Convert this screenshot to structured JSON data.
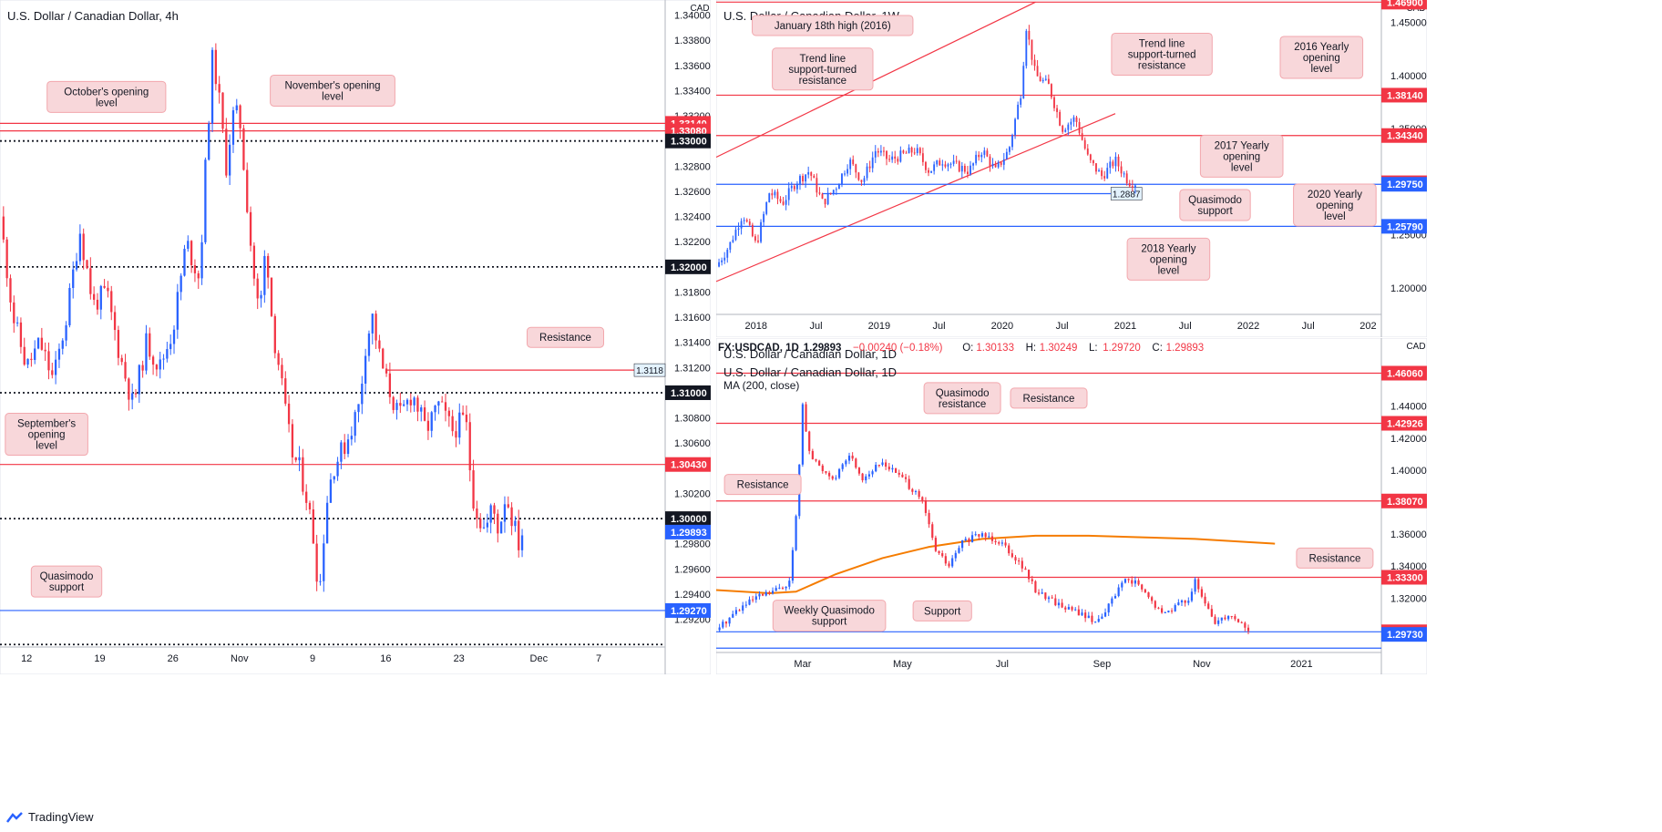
{
  "brand": "TradingView",
  "chart_data": [
    {
      "id": "h4",
      "type": "candlestick",
      "title": "U.S. Dollar / Canadian Dollar, 4h",
      "currency": "CAD",
      "ylim": [
        1.2898,
        1.3412
      ],
      "xlim": [
        0,
        100
      ],
      "x_ticks": [
        {
          "x": 4,
          "label": "12"
        },
        {
          "x": 15,
          "label": "19"
        },
        {
          "x": 26,
          "label": "26"
        },
        {
          "x": 36,
          "label": "Nov"
        },
        {
          "x": 47,
          "label": "9"
        },
        {
          "x": 58,
          "label": "16"
        },
        {
          "x": 69,
          "label": "23"
        },
        {
          "x": 81,
          "label": "Dec"
        },
        {
          "x": 90,
          "label": "7"
        }
      ],
      "y_ticks": [
        1.292,
        1.294,
        1.296,
        1.298,
        1.302,
        1.306,
        1.308,
        1.312,
        1.314,
        1.316,
        1.318,
        1.322,
        1.324,
        1.326,
        1.328,
        1.332,
        1.334,
        1.336,
        1.338,
        1.34
      ],
      "levels": [
        {
          "value": 1.3314,
          "label": "1.33140",
          "style": "solid",
          "color": "#f23645",
          "tag": "red"
        },
        {
          "value": 1.3308,
          "label": "1.33080",
          "style": "solid",
          "color": "#f23645",
          "tag": "red"
        },
        {
          "value": 1.33,
          "label": "1.33000",
          "style": "dotted",
          "color": "#131722",
          "tag": "black"
        },
        {
          "value": 1.32,
          "label": "1.32000",
          "style": "dotted",
          "color": "#131722",
          "tag": "black"
        },
        {
          "value": 1.3118,
          "label": "1.3118",
          "style": "solid",
          "color": "#f23645",
          "tag": "small",
          "x_start": 58
        },
        {
          "value": 1.31,
          "label": "1.31000",
          "style": "dotted",
          "color": "#131722",
          "tag": "black"
        },
        {
          "value": 1.3043,
          "label": "1.30430",
          "style": "solid",
          "color": "#f23645",
          "tag": "red"
        },
        {
          "value": 1.3,
          "label": "1.30000",
          "style": "dotted",
          "color": "#131722",
          "tag": "black"
        },
        {
          "value": 1.29893,
          "label": "1.29893",
          "style": "none",
          "color": "#2962ff",
          "tag": "blue"
        },
        {
          "value": 1.2927,
          "label": "1.29270",
          "style": "solid",
          "color": "#2962ff",
          "tag": "blue"
        },
        {
          "value": 1.29,
          "label": "",
          "style": "dotted",
          "color": "#131722",
          "tag": "none"
        }
      ],
      "annotations": [
        {
          "text": [
            "October's opening",
            "level"
          ],
          "x": 16,
          "y": 1.3335
        },
        {
          "text": [
            "November's opening",
            "level"
          ],
          "x": 50,
          "y": 1.334
        },
        {
          "text": [
            "Resistance"
          ],
          "x": 85,
          "y": 1.3144
        },
        {
          "text": [
            "September's",
            "opening",
            "level"
          ],
          "x": 7,
          "y": 1.3067
        },
        {
          "text": [
            "Quasimodo",
            "support"
          ],
          "x": 10,
          "y": 1.295
        }
      ],
      "path": [
        [
          0,
          1.324
        ],
        [
          2,
          1.316
        ],
        [
          4,
          1.312
        ],
        [
          6,
          1.314
        ],
        [
          8,
          1.311
        ],
        [
          10,
          1.316
        ],
        [
          12,
          1.323
        ],
        [
          14,
          1.317
        ],
        [
          16,
          1.318
        ],
        [
          18,
          1.313
        ],
        [
          20,
          1.309
        ],
        [
          22,
          1.314
        ],
        [
          24,
          1.312
        ],
        [
          26,
          1.315
        ],
        [
          28,
          1.322
        ],
        [
          30,
          1.319
        ],
        [
          31,
          1.329
        ],
        [
          32,
          1.337
        ],
        [
          33,
          1.333
        ],
        [
          34,
          1.328
        ],
        [
          35,
          1.332
        ],
        [
          36,
          1.332
        ],
        [
          37,
          1.326
        ],
        [
          38,
          1.32
        ],
        [
          39,
          1.316
        ],
        [
          40,
          1.322
        ],
        [
          41,
          1.315
        ],
        [
          42,
          1.312
        ],
        [
          43,
          1.308
        ],
        [
          44,
          1.305
        ],
        [
          45,
          1.304
        ],
        [
          46,
          1.302
        ],
        [
          47,
          1.299
        ],
        [
          48,
          1.294
        ],
        [
          49,
          1.301
        ],
        [
          50,
          1.304
        ],
        [
          52,
          1.306
        ],
        [
          54,
          1.309
        ],
        [
          55,
          1.314
        ],
        [
          56,
          1.316
        ],
        [
          57,
          1.313
        ],
        [
          58,
          1.311
        ],
        [
          60,
          1.308
        ],
        [
          62,
          1.31
        ],
        [
          64,
          1.307
        ],
        [
          66,
          1.309
        ],
        [
          68,
          1.307
        ],
        [
          70,
          1.308
        ],
        [
          71,
          1.302
        ],
        [
          72,
          1.3
        ],
        [
          73,
          1.299
        ],
        [
          74,
          1.301
        ],
        [
          75,
          1.299
        ],
        [
          76,
          1.302
        ],
        [
          77,
          1.3
        ],
        [
          78,
          1.298
        ],
        [
          78.5,
          1.29893
        ]
      ]
    },
    {
      "id": "w1",
      "type": "candlestick",
      "title": "U.S. Dollar / Canadian Dollar, 1W",
      "currency": "CAD",
      "ylim": [
        1.175,
        1.471
      ],
      "xlim": [
        0,
        100
      ],
      "x_ticks": [
        {
          "x": 6,
          "label": "2018"
        },
        {
          "x": 15,
          "label": "Jul"
        },
        {
          "x": 24.5,
          "label": "2019"
        },
        {
          "x": 33.5,
          "label": "Jul"
        },
        {
          "x": 43,
          "label": "2020"
        },
        {
          "x": 52,
          "label": "Jul"
        },
        {
          "x": 61.5,
          "label": "2021"
        },
        {
          "x": 70.5,
          "label": "Jul"
        },
        {
          "x": 80,
          "label": "2022"
        },
        {
          "x": 89,
          "label": "Jul"
        },
        {
          "x": 98,
          "label": "202"
        }
      ],
      "y_ticks": [
        1.2,
        1.25,
        1.3,
        1.35,
        1.4,
        1.45
      ],
      "levels": [
        {
          "value": 1.469,
          "label": "1.46900",
          "style": "solid",
          "color": "#f23645",
          "tag": "red"
        },
        {
          "value": 1.3814,
          "label": "1.38140",
          "style": "solid",
          "color": "#f23645",
          "tag": "red"
        },
        {
          "value": 1.3434,
          "label": "1.34340",
          "style": "solid",
          "color": "#f23645",
          "tag": "red"
        },
        {
          "value": 1.29893,
          "label": "1.29893",
          "style": "none",
          "color": "#f23645",
          "tag": "red"
        },
        {
          "value": 1.2975,
          "label": "1.29750",
          "style": "solid",
          "color": "#2962ff",
          "tag": "blue"
        },
        {
          "value": 1.2887,
          "label": "1.2887",
          "style": "solid",
          "color": "#2962ff",
          "tag": "small",
          "x_start": 16,
          "x_end": 64
        },
        {
          "value": 1.2579,
          "label": "1.25790",
          "style": "solid",
          "color": "#2962ff",
          "tag": "blue"
        }
      ],
      "trendlines": [
        {
          "x1": 0,
          "y1": 1.323,
          "x2": 48,
          "y2": 1.469,
          "color": "#f23645"
        },
        {
          "x1": 0,
          "y1": 1.206,
          "x2": 60,
          "y2": 1.364,
          "color": "#f23645"
        }
      ],
      "annotations": [
        {
          "text": [
            "January 18th high (2016)"
          ],
          "x": 17.5,
          "y": 1.447
        },
        {
          "text": [
            "Trend line",
            "support-turned",
            "resistance"
          ],
          "x": 16,
          "y": 1.406
        },
        {
          "text": [
            "Trend line",
            "support-turned",
            "resistance"
          ],
          "x": 67,
          "y": 1.42
        },
        {
          "text": [
            "2016 Yearly",
            "opening",
            "level"
          ],
          "x": 91,
          "y": 1.417
        },
        {
          "text": [
            "2017 Yearly",
            "opening",
            "level"
          ],
          "x": 79,
          "y": 1.324
        },
        {
          "text": [
            "Quasimodo",
            "support"
          ],
          "x": 75,
          "y": 1.278
        },
        {
          "text": [
            "2020 Yearly",
            "opening",
            "level"
          ],
          "x": 93,
          "y": 1.278
        },
        {
          "text": [
            "2018 Yearly",
            "opening",
            "level"
          ],
          "x": 68,
          "y": 1.227
        }
      ],
      "path": [
        [
          0,
          1.22
        ],
        [
          2,
          1.24
        ],
        [
          4,
          1.27
        ],
        [
          6,
          1.24
        ],
        [
          8,
          1.29
        ],
        [
          10,
          1.28
        ],
        [
          12,
          1.3
        ],
        [
          14,
          1.31
        ],
        [
          16,
          1.28
        ],
        [
          18,
          1.295
        ],
        [
          20,
          1.32
        ],
        [
          22,
          1.3
        ],
        [
          24,
          1.33
        ],
        [
          26,
          1.32
        ],
        [
          28,
          1.325
        ],
        [
          30,
          1.33
        ],
        [
          32,
          1.31
        ],
        [
          34,
          1.32
        ],
        [
          36,
          1.315
        ],
        [
          38,
          1.31
        ],
        [
          40,
          1.33
        ],
        [
          42,
          1.31
        ],
        [
          44,
          1.33
        ],
        [
          46,
          1.39
        ],
        [
          46.5,
          1.45
        ],
        [
          48,
          1.4
        ],
        [
          50,
          1.39
        ],
        [
          51,
          1.37
        ],
        [
          52,
          1.35
        ],
        [
          54,
          1.36
        ],
        [
          56,
          1.32
        ],
        [
          58,
          1.305
        ],
        [
          60,
          1.32
        ],
        [
          62,
          1.3
        ],
        [
          63,
          1.29893
        ]
      ]
    },
    {
      "id": "d1",
      "type": "candlestick",
      "title": "U.S. Dollar / Canadian Dollar, 1D",
      "currency": "CAD",
      "header": {
        "symbol": "FX:USDCAD, 1D",
        "price": "1.29893",
        "change": "−0.00240 (−0.18%)",
        "o_label": "O:",
        "o": "1.30133",
        "h_label": "H:",
        "h": "1.30249",
        "l_label": "L:",
        "l": "1.29720",
        "c_label": "C:",
        "c": "1.29893"
      },
      "ma_label": "MA (200, close)",
      "ylim": [
        1.286,
        1.47
      ],
      "xlim": [
        0,
        100
      ],
      "x_ticks": [
        {
          "x": 13,
          "label": "Mar"
        },
        {
          "x": 28,
          "label": "May"
        },
        {
          "x": 43,
          "label": "Jul"
        },
        {
          "x": 58,
          "label": "Sep"
        },
        {
          "x": 73,
          "label": "Nov"
        },
        {
          "x": 88,
          "label": "2021"
        }
      ],
      "y_ticks": [
        1.32,
        1.34,
        1.36,
        1.38,
        1.4,
        1.42,
        1.44
      ],
      "levels": [
        {
          "value": 1.4606,
          "label": "1.46060",
          "style": "solid",
          "color": "#f23645",
          "tag": "red"
        },
        {
          "value": 1.42926,
          "label": "1.42926",
          "style": "solid",
          "color": "#f23645",
          "tag": "red"
        },
        {
          "value": 1.3807,
          "label": "1.38070",
          "style": "solid",
          "color": "#f23645",
          "tag": "red"
        },
        {
          "value": 1.333,
          "label": "1.33300",
          "style": "solid",
          "color": "#f23645",
          "tag": "red"
        },
        {
          "value": 1.29893,
          "label": "1.29893",
          "style": "solid",
          "color": "#2962ff",
          "tag": "red"
        },
        {
          "value": 1.2973,
          "label": "1.29730",
          "style": "none",
          "color": "#2962ff",
          "tag": "blue"
        },
        {
          "value": 1.2887,
          "label": "",
          "style": "solid",
          "color": "#2962ff",
          "tag": "none"
        }
      ],
      "ma_path": [
        [
          0,
          1.325
        ],
        [
          8,
          1.323
        ],
        [
          12,
          1.324
        ],
        [
          18,
          1.335
        ],
        [
          25,
          1.345
        ],
        [
          32,
          1.352
        ],
        [
          40,
          1.357
        ],
        [
          48,
          1.359
        ],
        [
          56,
          1.359
        ],
        [
          64,
          1.358
        ],
        [
          72,
          1.357
        ],
        [
          80,
          1.355
        ],
        [
          84,
          1.354
        ]
      ],
      "annotations": [
        {
          "text": [
            "Quasimodo",
            "resistance"
          ],
          "x": 37,
          "y": 1.445
        },
        {
          "text": [
            "Resistance"
          ],
          "x": 50,
          "y": 1.445
        },
        {
          "text": [
            "Resistance"
          ],
          "x": 7,
          "y": 1.391
        },
        {
          "text": [
            "Resistance"
          ],
          "x": 93,
          "y": 1.345
        },
        {
          "text": [
            "Weekly Quasimodo",
            "support"
          ],
          "x": 17,
          "y": 1.309
        },
        {
          "text": [
            "Support"
          ],
          "x": 34,
          "y": 1.312
        }
      ],
      "path": [
        [
          0,
          1.3
        ],
        [
          3,
          1.312
        ],
        [
          6,
          1.32
        ],
        [
          9,
          1.325
        ],
        [
          11,
          1.33
        ],
        [
          12,
          1.37
        ],
        [
          13,
          1.44
        ],
        [
          14,
          1.41
        ],
        [
          16,
          1.4
        ],
        [
          18,
          1.395
        ],
        [
          20,
          1.41
        ],
        [
          22,
          1.395
        ],
        [
          25,
          1.405
        ],
        [
          28,
          1.395
        ],
        [
          31,
          1.38
        ],
        [
          33,
          1.35
        ],
        [
          35,
          1.34
        ],
        [
          37,
          1.355
        ],
        [
          40,
          1.36
        ],
        [
          43,
          1.355
        ],
        [
          46,
          1.34
        ],
        [
          48,
          1.325
        ],
        [
          52,
          1.315
        ],
        [
          55,
          1.31
        ],
        [
          57,
          1.305
        ],
        [
          59,
          1.315
        ],
        [
          61,
          1.33
        ],
        [
          63,
          1.33
        ],
        [
          65,
          1.32
        ],
        [
          67,
          1.31
        ],
        [
          69,
          1.315
        ],
        [
          71,
          1.32
        ],
        [
          72,
          1.33
        ],
        [
          73,
          1.32
        ],
        [
          75,
          1.305
        ],
        [
          77,
          1.31
        ],
        [
          79,
          1.305
        ],
        [
          80,
          1.29893
        ]
      ]
    }
  ]
}
